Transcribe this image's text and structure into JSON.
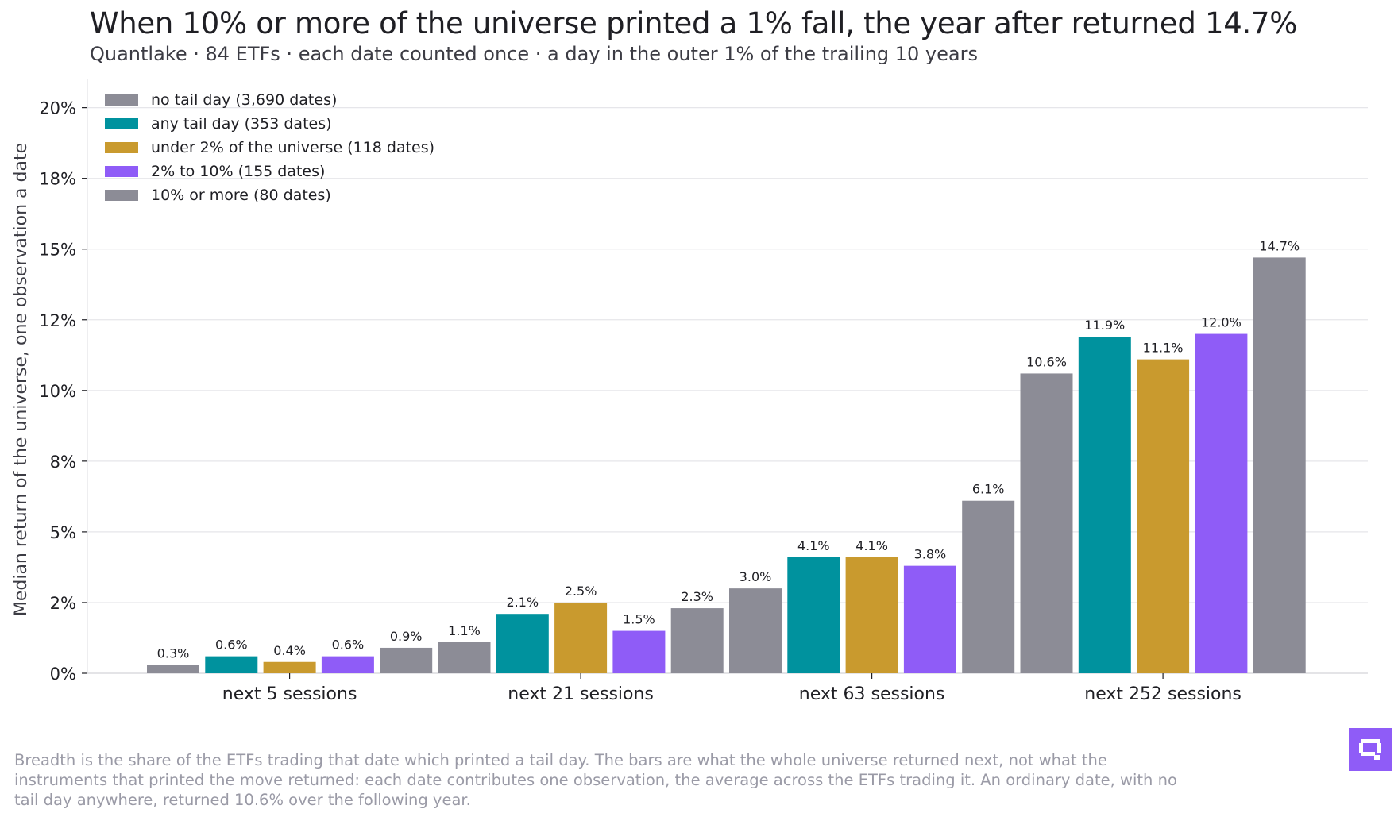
{
  "header": {
    "title": "When 10% or more of the universe printed a 1% fall, the year after returned 14.7%",
    "subtitle": "Quantlake · 84 ETFs · each date counted once · a day in the outer 1% of the trailing 10 years"
  },
  "chart_data": {
    "type": "bar",
    "ylabel": "Median return of the universe, one observation a date",
    "xlabel": "",
    "ylim": [
      0,
      21
    ],
    "yticks": [
      {
        "value": 0,
        "label": "0%"
      },
      {
        "value": 2.5,
        "label": "2%"
      },
      {
        "value": 5,
        "label": "5%"
      },
      {
        "value": 7.5,
        "label": "8%"
      },
      {
        "value": 10,
        "label": "10%"
      },
      {
        "value": 12.5,
        "label": "12%"
      },
      {
        "value": 15,
        "label": "15%"
      },
      {
        "value": 17.5,
        "label": "18%"
      },
      {
        "value": 20,
        "label": "20%"
      }
    ],
    "grid": true,
    "legend_position": "top-left",
    "categories": [
      "next 5 sessions",
      "next 21 sessions",
      "next 63 sessions",
      "next 252 sessions"
    ],
    "series": [
      {
        "name": "no tail day (3,690 dates)",
        "color": "#8c8c96",
        "values": [
          0.3,
          1.1,
          3.0,
          10.6
        ],
        "labels": [
          "0.3%",
          "1.1%",
          "3.0%",
          "10.6%"
        ]
      },
      {
        "name": "any tail day (353 dates)",
        "color": "#00929e",
        "values": [
          0.6,
          2.1,
          4.1,
          11.9
        ],
        "labels": [
          "0.6%",
          "2.1%",
          "4.1%",
          "11.9%"
        ]
      },
      {
        "name": "under 2% of the universe (118 dates)",
        "color": "#c99a2e",
        "values": [
          0.4,
          2.5,
          4.1,
          11.1
        ],
        "labels": [
          "0.4%",
          "2.5%",
          "4.1%",
          "11.1%"
        ]
      },
      {
        "name": "2% to 10% (155 dates)",
        "color": "#8f5cf7",
        "values": [
          0.6,
          1.5,
          3.8,
          12.0
        ],
        "labels": [
          "0.6%",
          "1.5%",
          "3.8%",
          "12.0%"
        ]
      },
      {
        "name": "10% or more (80 dates)",
        "color": "#8c8c96",
        "values": [
          0.9,
          2.3,
          6.1,
          14.7
        ],
        "labels": [
          "0.9%",
          "2.3%",
          "6.1%",
          "14.7%"
        ]
      }
    ]
  },
  "footer": {
    "note": "Breadth is the share of the ETFs trading that date which printed a tail day. The bars are what the whole universe returned next, not what the instruments that printed the move returned: each date contributes one observation, the average across the ETFs trading it. An ordinary date, with no tail day anywhere, returned 10.6% over the following year."
  },
  "brand": {
    "logo_icon": "quantlake-logo-icon",
    "logo_color": "#8f5cf7"
  }
}
